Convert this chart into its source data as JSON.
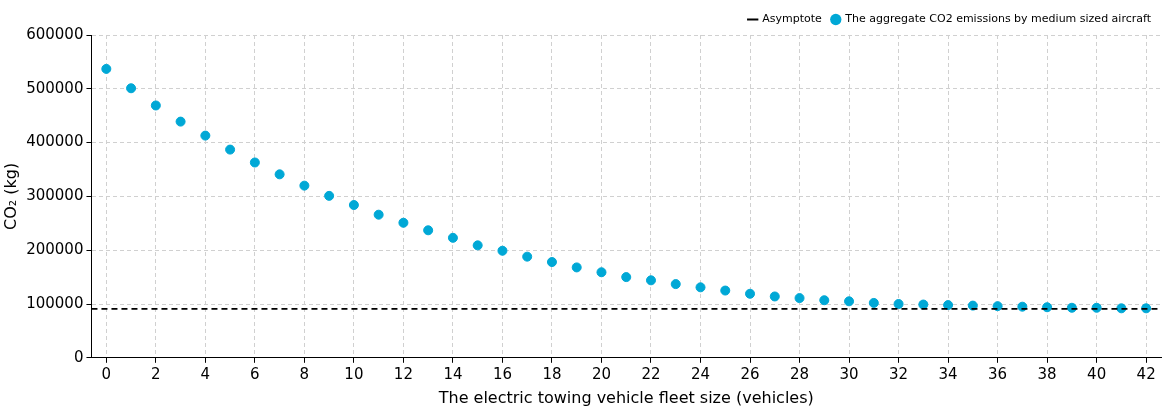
{
  "chart_data": {
    "type": "scatter",
    "xlabel": "The electric towing vehicle fleet size (vehicles)",
    "ylabel": "CO₂ (kg)",
    "x": [
      0,
      1,
      2,
      3,
      4,
      5,
      6,
      7,
      8,
      9,
      10,
      11,
      12,
      13,
      14,
      15,
      16,
      17,
      18,
      19,
      20,
      21,
      22,
      23,
      24,
      25,
      26,
      27,
      28,
      29,
      30,
      31,
      32,
      33,
      34,
      35,
      36,
      37,
      38,
      39,
      40,
      41,
      42
    ],
    "series": [
      {
        "name": "The aggregate CO2 emissions by medium sized aircraft",
        "color": "#00a8d6",
        "values": [
          537000,
          501000,
          469000,
          439000,
          413000,
          387000,
          363000,
          341000,
          320000,
          301000,
          284000,
          266000,
          251000,
          237000,
          223000,
          209000,
          199000,
          188000,
          178000,
          168000,
          159000,
          150000,
          144000,
          137000,
          131000,
          125000,
          119000,
          114000,
          111000,
          107000,
          105000,
          102000,
          100000,
          99000,
          98000,
          97000,
          96000,
          95000,
          94000,
          93000,
          93000,
          92000,
          92000
        ]
      }
    ],
    "ref_lines": [
      {
        "axis": "y",
        "value": 91000,
        "label": "Asymptote",
        "color": "#000000",
        "line_style": "dashed"
      }
    ],
    "xlim": [
      -0.6,
      42.6
    ],
    "xticks": [
      0,
      2,
      4,
      6,
      8,
      10,
      12,
      14,
      16,
      18,
      20,
      22,
      24,
      26,
      28,
      30,
      32,
      34,
      36,
      38,
      40,
      42
    ],
    "ylim": [
      0,
      600000
    ],
    "yticks": [
      0,
      100000,
      200000,
      300000,
      400000,
      500000,
      600000
    ],
    "grid": true,
    "legend": "top right",
    "marker": "circle"
  }
}
